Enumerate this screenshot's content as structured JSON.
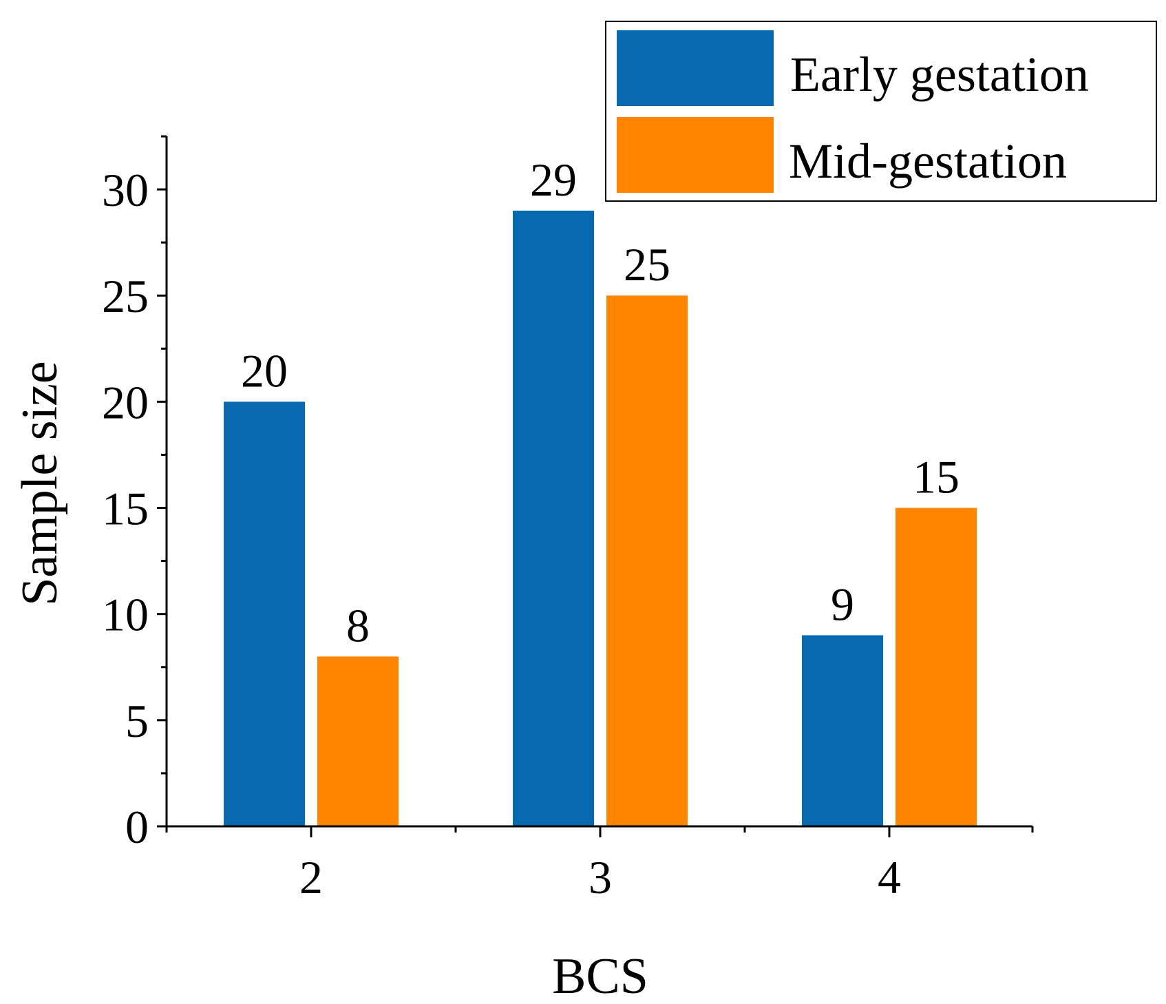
{
  "chart_data": {
    "type": "bar",
    "title": "",
    "xlabel": "BCS",
    "ylabel": "Sample size",
    "categories": [
      "2",
      "3",
      "4"
    ],
    "series": [
      {
        "name": "Early gestation",
        "color": "#0869b0",
        "values": [
          20,
          29,
          9
        ],
        "value_labels": [
          "20",
          "29",
          "9"
        ]
      },
      {
        "name": "Mid-gestation",
        "color": "#ff8400",
        "values": [
          8,
          25,
          15
        ],
        "value_labels": [
          "8",
          "25",
          "15"
        ]
      }
    ],
    "ylim": [
      0,
      32.5
    ],
    "yticks": [
      0,
      5,
      10,
      15,
      20,
      25,
      30
    ],
    "ytick_labels": [
      "0",
      "5",
      "10",
      "15",
      "20",
      "25",
      "30"
    ],
    "legend_position": "top-right",
    "grid": false
  }
}
